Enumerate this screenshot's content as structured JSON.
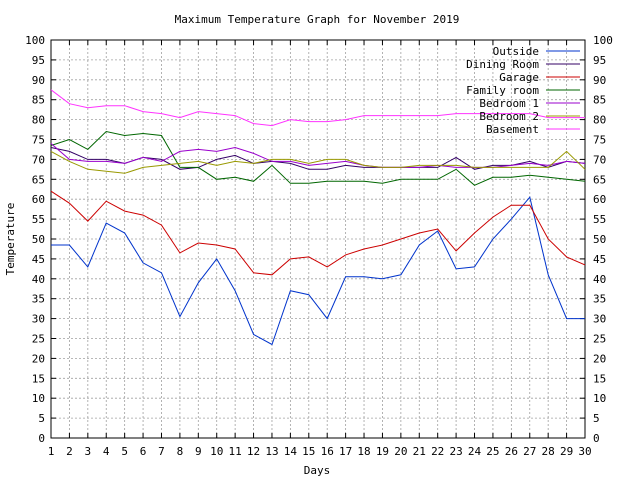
{
  "chart_data": {
    "type": "line",
    "title": "Maximum Temperature Graph for November 2019",
    "xlabel": "Days",
    "ylabel": "Temperature",
    "xlim": [
      1,
      30
    ],
    "ylim": [
      0,
      100
    ],
    "grid": true,
    "legend_position": "top-right",
    "x": [
      1,
      2,
      3,
      4,
      5,
      6,
      7,
      8,
      9,
      10,
      11,
      12,
      13,
      14,
      15,
      16,
      17,
      18,
      19,
      20,
      21,
      22,
      23,
      24,
      25,
      26,
      27,
      28,
      29,
      30
    ],
    "x_ticks": [
      "1",
      "2",
      "3",
      "4",
      "5",
      "6",
      "7",
      "8",
      "9",
      "10",
      "11",
      "12",
      "13",
      "14",
      "15",
      "16",
      "17",
      "18",
      "19",
      "20",
      "21",
      "22",
      "23",
      "24",
      "25",
      "26",
      "27",
      "28",
      "29",
      "30"
    ],
    "y_ticks": [
      "0",
      "5",
      "10",
      "15",
      "20",
      "25",
      "30",
      "35",
      "40",
      "45",
      "50",
      "55",
      "60",
      "65",
      "70",
      "75",
      "80",
      "85",
      "90",
      "95",
      "100"
    ],
    "series": [
      {
        "name": "Outside",
        "color": "#0033cc",
        "values": [
          48.5,
          48.5,
          43,
          54,
          51.5,
          44,
          41.5,
          30.5,
          39,
          45,
          37,
          26,
          23.5,
          37,
          36,
          30,
          40.5,
          40.5,
          40,
          41,
          48.5,
          52,
          42.5,
          43,
          50,
          55,
          60.5,
          41,
          30,
          30
        ]
      },
      {
        "name": "Dining Room",
        "color": "#330066",
        "values": [
          73,
          72,
          70,
          70,
          69,
          70.5,
          70,
          67.5,
          68,
          70,
          71,
          69,
          69.5,
          69,
          67.5,
          67.5,
          68.5,
          68,
          68,
          68,
          68,
          68,
          70.5,
          67.5,
          68.5,
          68.5,
          69.5,
          68,
          69.5,
          69
        ]
      },
      {
        "name": "Garage",
        "color": "#cc0000",
        "values": [
          62,
          59,
          54.5,
          59.5,
          57,
          56,
          53.5,
          46.5,
          49,
          48.5,
          47.5,
          41.5,
          41,
          45,
          45.5,
          43,
          46,
          47.5,
          48.5,
          50,
          51.5,
          52.5,
          47,
          51.5,
          55.5,
          58.5,
          58.5,
          50,
          45.5,
          43.5
        ]
      },
      {
        "name": "Family room",
        "color": "#006600",
        "values": [
          73.5,
          75,
          72.5,
          77,
          76,
          76.5,
          76,
          68,
          68,
          65,
          65.5,
          64.5,
          68.5,
          64,
          64,
          64.5,
          64.5,
          64.5,
          64,
          65,
          65,
          65,
          67.5,
          63.5,
          65.5,
          65.5,
          66,
          65.5,
          65,
          64.5
        ]
      },
      {
        "name": "Bedroom 1",
        "color": "#9900cc",
        "values": [
          74,
          70,
          69.5,
          69.5,
          69,
          70.5,
          69.5,
          72,
          72.5,
          72,
          73,
          71.5,
          69.5,
          69.5,
          68.5,
          69,
          69.5,
          68.5,
          68,
          68,
          68,
          68.5,
          68,
          68,
          68,
          68.5,
          69,
          68.5,
          69.5,
          69
        ]
      },
      {
        "name": "Bedroom 2",
        "color": "#999900",
        "values": [
          72,
          69.5,
          67.5,
          67,
          66.5,
          68,
          68.5,
          69,
          69.5,
          68.5,
          69.5,
          69,
          70,
          70,
          69,
          70,
          70,
          68.5,
          68,
          68,
          68.5,
          68.5,
          68.5,
          68,
          68,
          68,
          68,
          68,
          72,
          67.5
        ]
      },
      {
        "name": "Basement",
        "color": "#ff33ff",
        "values": [
          87.5,
          84,
          83,
          83.5,
          83.5,
          82,
          81.5,
          80.5,
          82,
          81.5,
          81,
          79,
          78.5,
          80,
          79.5,
          79.5,
          80,
          81,
          81,
          81,
          81,
          81,
          81.5,
          81.5,
          81.5,
          81.5,
          81.5,
          80.5,
          80.5,
          80.5
        ]
      }
    ]
  }
}
